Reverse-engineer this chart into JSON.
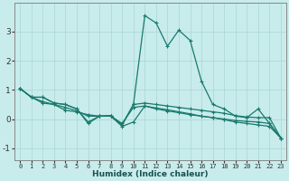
{
  "xlabel": "Humidex (Indice chaleur)",
  "background_color": "#c8ecec",
  "grid_color": "#b0d8d8",
  "line_color": "#1a7a6e",
  "x_values": [
    0,
    1,
    2,
    3,
    4,
    5,
    6,
    7,
    8,
    9,
    10,
    11,
    12,
    13,
    14,
    15,
    16,
    17,
    18,
    19,
    20,
    21,
    22,
    23
  ],
  "series1": [
    1.05,
    0.75,
    0.75,
    0.55,
    0.5,
    0.35,
    -0.15,
    0.1,
    0.12,
    -0.2,
    0.5,
    3.55,
    3.3,
    2.5,
    3.05,
    2.7,
    1.3,
    0.5,
    0.35,
    0.1,
    0.05,
    0.35,
    -0.15,
    -0.65
  ],
  "series2": [
    1.05,
    0.75,
    0.75,
    0.55,
    0.5,
    0.35,
    -0.1,
    0.1,
    0.12,
    -0.2,
    0.5,
    0.55,
    0.5,
    0.45,
    0.4,
    0.35,
    0.3,
    0.25,
    0.2,
    0.12,
    0.07,
    0.05,
    0.05,
    -0.65
  ],
  "series3": [
    1.05,
    0.75,
    0.55,
    0.5,
    0.3,
    0.25,
    0.15,
    0.1,
    0.1,
    -0.25,
    -0.1,
    0.45,
    0.35,
    0.28,
    0.22,
    0.15,
    0.1,
    0.05,
    0.0,
    -0.05,
    -0.08,
    -0.1,
    -0.15,
    -0.65
  ],
  "series4": [
    1.05,
    0.75,
    0.6,
    0.5,
    0.4,
    0.28,
    0.1,
    0.1,
    0.1,
    -0.15,
    0.4,
    0.45,
    0.38,
    0.32,
    0.25,
    0.18,
    0.1,
    0.05,
    -0.02,
    -0.1,
    -0.15,
    -0.2,
    -0.25,
    -0.65
  ],
  "ylim": [
    -1.4,
    4.0
  ],
  "yticks": [
    -1,
    0,
    1,
    2,
    3
  ],
  "xticks": [
    0,
    1,
    2,
    3,
    4,
    5,
    6,
    7,
    8,
    9,
    10,
    11,
    12,
    13,
    14,
    15,
    16,
    17,
    18,
    19,
    20,
    21,
    22,
    23
  ]
}
